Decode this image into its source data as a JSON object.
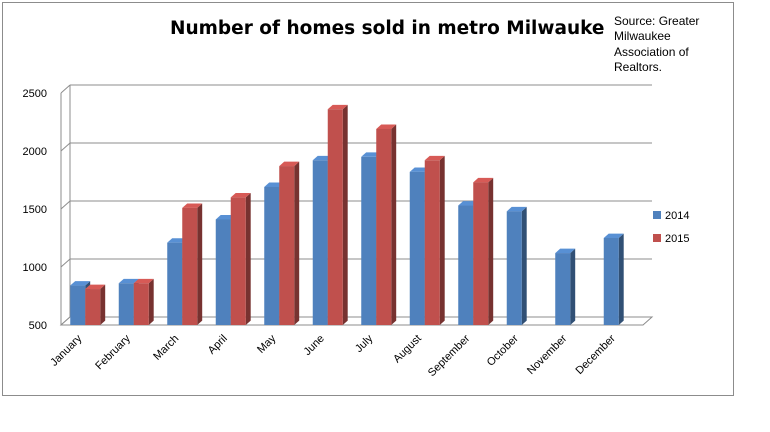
{
  "chart_data": {
    "type": "bar",
    "title": "Number of homes sold in metro Milwauke",
    "source": [
      "Source: Greater",
      "Milwaukee",
      "Association of",
      "Realtors."
    ],
    "categories": [
      "January",
      "February",
      "March",
      "April",
      "May",
      "June",
      "July",
      "August",
      "September",
      "October",
      "November",
      "December"
    ],
    "series": [
      {
        "name": "2014",
        "color": "#4f81bd",
        "values": [
          840,
          860,
          1210,
          1410,
          1690,
          1920,
          1950,
          1820,
          1530,
          1480,
          1120,
          1250
        ]
      },
      {
        "name": "2015",
        "color": "#c0504d",
        "values": [
          810,
          860,
          1510,
          1600,
          1870,
          2360,
          2190,
          1920,
          1730,
          null,
          null,
          null
        ]
      }
    ],
    "ylim": [
      500,
      2500
    ],
    "yticks": [
      500,
      1000,
      1500,
      2000,
      2500
    ],
    "grid": true,
    "legend": "right"
  }
}
